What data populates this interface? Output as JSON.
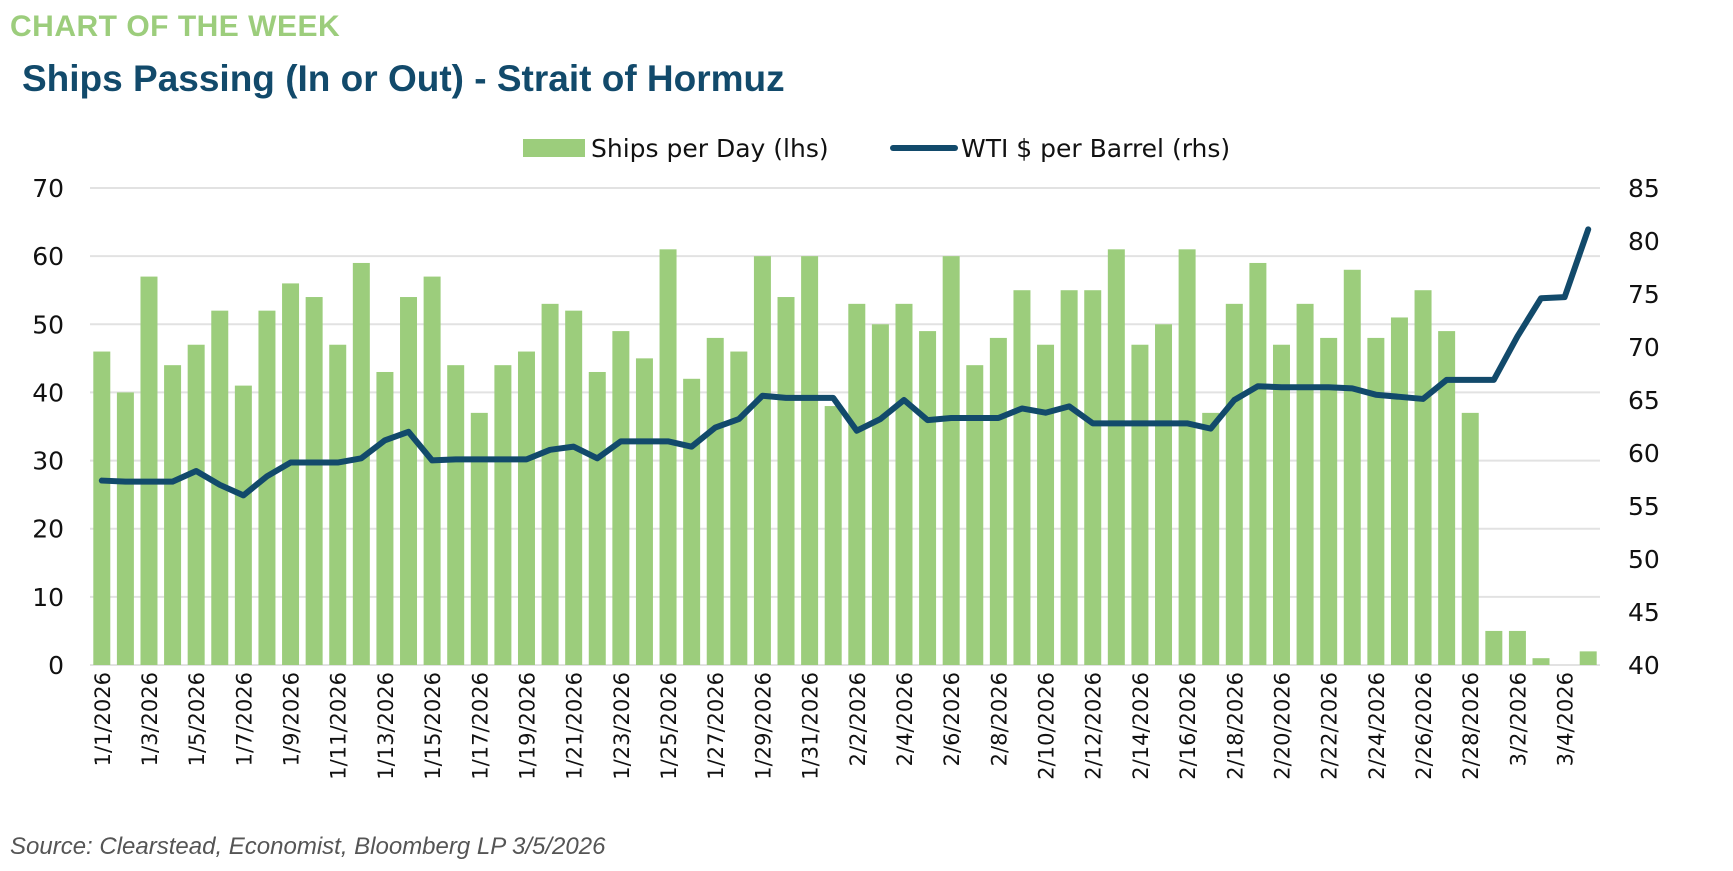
{
  "header": {
    "kicker": "CHART OF THE WEEK",
    "title": "Ships Passing (In or Out) - Strait of Hormuz"
  },
  "footer": {
    "source": "Source: Clearstead, Economist, Bloomberg LP 3/5/2026"
  },
  "colors": {
    "bars": "#9ccd7c",
    "line": "#124a6b",
    "grid": "#e2e2e2",
    "kicker": "#9ccd7c",
    "title": "#124a6b"
  },
  "chart_data": {
    "type": "bar+line",
    "title": "Ships Passing (In or Out) - Strait of Hormuz",
    "legend_position": "top-center",
    "grid": true,
    "legend": [
      "Ships per Day (lhs)",
      "WTI $ per Barrel (rhs)"
    ],
    "y_left": {
      "min": 0,
      "max": 70,
      "ticks": [
        "0",
        "10",
        "20",
        "30",
        "40",
        "50",
        "60",
        "70"
      ]
    },
    "y_right": {
      "min": 40,
      "max": 85,
      "ticks": [
        "40",
        "45",
        "50",
        "55",
        "60",
        "65",
        "70",
        "75",
        "80",
        "85"
      ]
    },
    "x": [
      "1/1/2026",
      "1/2/2026",
      "1/3/2026",
      "1/4/2026",
      "1/5/2026",
      "1/6/2026",
      "1/7/2026",
      "1/8/2026",
      "1/9/2026",
      "1/10/2026",
      "1/11/2026",
      "1/12/2026",
      "1/13/2026",
      "1/14/2026",
      "1/15/2026",
      "1/16/2026",
      "1/17/2026",
      "1/18/2026",
      "1/19/2026",
      "1/20/2026",
      "1/21/2026",
      "1/22/2026",
      "1/23/2026",
      "1/24/2026",
      "1/25/2026",
      "1/26/2026",
      "1/27/2026",
      "1/28/2026",
      "1/29/2026",
      "1/30/2026",
      "1/31/2026",
      "2/1/2026",
      "2/2/2026",
      "2/3/2026",
      "2/4/2026",
      "2/5/2026",
      "2/6/2026",
      "2/7/2026",
      "2/8/2026",
      "2/9/2026",
      "2/10/2026",
      "2/11/2026",
      "2/12/2026",
      "2/13/2026",
      "2/14/2026",
      "2/15/2026",
      "2/16/2026",
      "2/17/2026",
      "2/18/2026",
      "2/19/2026",
      "2/20/2026",
      "2/21/2026",
      "2/22/2026",
      "2/23/2026",
      "2/24/2026",
      "2/25/2026",
      "2/26/2026",
      "2/27/2026",
      "2/28/2026",
      "3/1/2026",
      "3/2/2026",
      "3/3/2026",
      "3/4/2026",
      "3/5/2026"
    ],
    "series": [
      {
        "name": "Ships per Day (lhs)",
        "type": "bar",
        "axis": "left",
        "values": [
          46,
          40,
          57,
          44,
          47,
          52,
          41,
          52,
          56,
          54,
          47,
          59,
          43,
          54,
          57,
          44,
          37,
          44,
          46,
          53,
          52,
          43,
          49,
          45,
          61,
          42,
          48,
          46,
          60,
          54,
          60,
          38,
          53,
          50,
          53,
          49,
          60,
          44,
          48,
          55,
          47,
          55,
          55,
          61,
          47,
          50,
          61,
          37,
          53,
          59,
          47,
          53,
          48,
          58,
          48,
          51,
          55,
          49,
          37,
          5,
          5,
          1,
          0,
          2
        ]
      },
      {
        "name": "WTI $ per Barrel (rhs)",
        "type": "line",
        "axis": "right",
        "values": [
          57.4,
          57.3,
          57.3,
          57.3,
          58.3,
          57.0,
          56.0,
          57.8,
          59.1,
          59.1,
          59.1,
          59.5,
          61.2,
          62.0,
          59.3,
          59.4,
          59.4,
          59.4,
          59.4,
          60.3,
          60.6,
          59.5,
          61.1,
          61.1,
          61.1,
          60.6,
          62.4,
          63.2,
          65.4,
          65.2,
          65.2,
          65.2,
          62.1,
          63.2,
          65.0,
          63.1,
          63.3,
          63.3,
          63.3,
          64.2,
          63.8,
          64.4,
          62.8,
          62.8,
          62.8,
          62.8,
          62.8,
          62.3,
          65.0,
          66.3,
          66.2,
          66.2,
          66.2,
          66.1,
          65.5,
          65.3,
          65.1,
          66.9,
          66.9,
          66.9,
          71.0,
          74.6,
          74.7,
          81.1
        ]
      }
    ]
  }
}
